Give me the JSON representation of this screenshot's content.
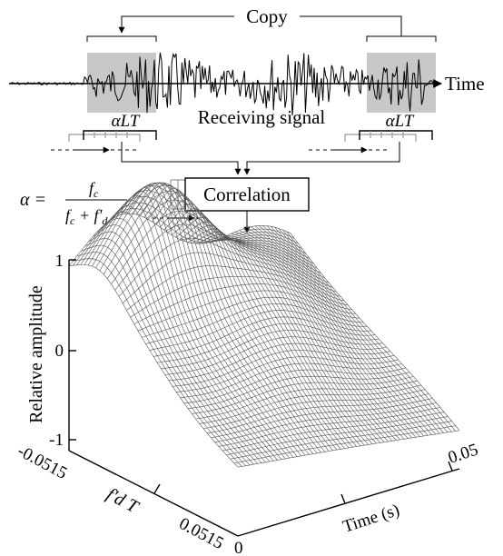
{
  "top": {
    "copy_label": "Copy",
    "time_label": "Time",
    "receiving_label": "Receiving signal",
    "window_left_label": "αLT",
    "window_right_label": "αLT",
    "correlation_label": "Correlation"
  },
  "formula": {
    "lhs": "α =",
    "numerator": "f",
    "numerator_sub": "c",
    "denominator": "f",
    "denominator_sub": "c",
    "denominator_plus": " + f'",
    "denominator_sub2": "d"
  },
  "surface": {
    "z_label": "Relative amplitude",
    "z_ticks": [
      "1",
      "0",
      "-1"
    ],
    "doppler_label": "f'd T",
    "doppler_ticks": [
      "-0.0515",
      "0.0515"
    ],
    "time_axis_label": "Time (s)",
    "time_ticks": [
      "0",
      "0.05"
    ]
  },
  "colors": {
    "ink": "#000000",
    "window_shade": "#c8c8c8",
    "mesh": "#555555"
  }
}
